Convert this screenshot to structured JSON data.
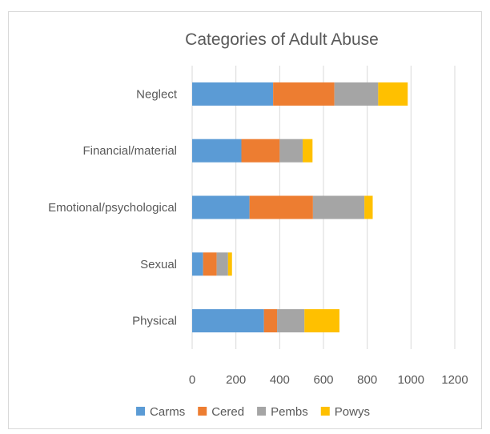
{
  "chart_data": {
    "type": "bar",
    "orientation": "horizontal",
    "stacked": true,
    "title": "Categories of Adult Abuse",
    "categories": [
      "Neglect",
      "Financial/material",
      "Emotional/psychological",
      "Sexual",
      "Physical"
    ],
    "series": [
      {
        "name": "Carms",
        "color": "#5B9BD5",
        "values": [
          370,
          225,
          262,
          50,
          328
        ]
      },
      {
        "name": "Cered",
        "color": "#ED7D31",
        "values": [
          280,
          175,
          290,
          62,
          60
        ]
      },
      {
        "name": "Pembs",
        "color": "#A5A5A5",
        "values": [
          200,
          105,
          235,
          52,
          125
        ]
      },
      {
        "name": "Powys",
        "color": "#FFC000",
        "values": [
          135,
          45,
          38,
          18,
          160
        ]
      }
    ],
    "xlim": [
      0,
      1200
    ],
    "xticks": [
      "0",
      "200",
      "400",
      "600",
      "800",
      "1000",
      "1200"
    ],
    "grid": true,
    "legend_position": "bottom"
  }
}
